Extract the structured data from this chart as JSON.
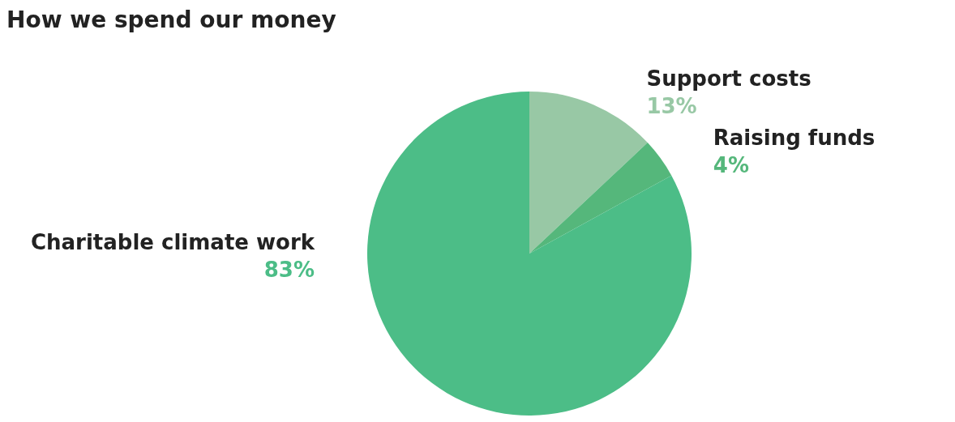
{
  "chart_data": {
    "type": "pie",
    "title": "How we spend our money",
    "categories": [
      "Support costs",
      "Raising funds",
      "Charitable climate work"
    ],
    "values": [
      13,
      4,
      83
    ],
    "colors": [
      "#98c8a5",
      "#55b77b",
      "#4cbd87"
    ],
    "value_labels": [
      "13%",
      "4%",
      "83%"
    ]
  }
}
